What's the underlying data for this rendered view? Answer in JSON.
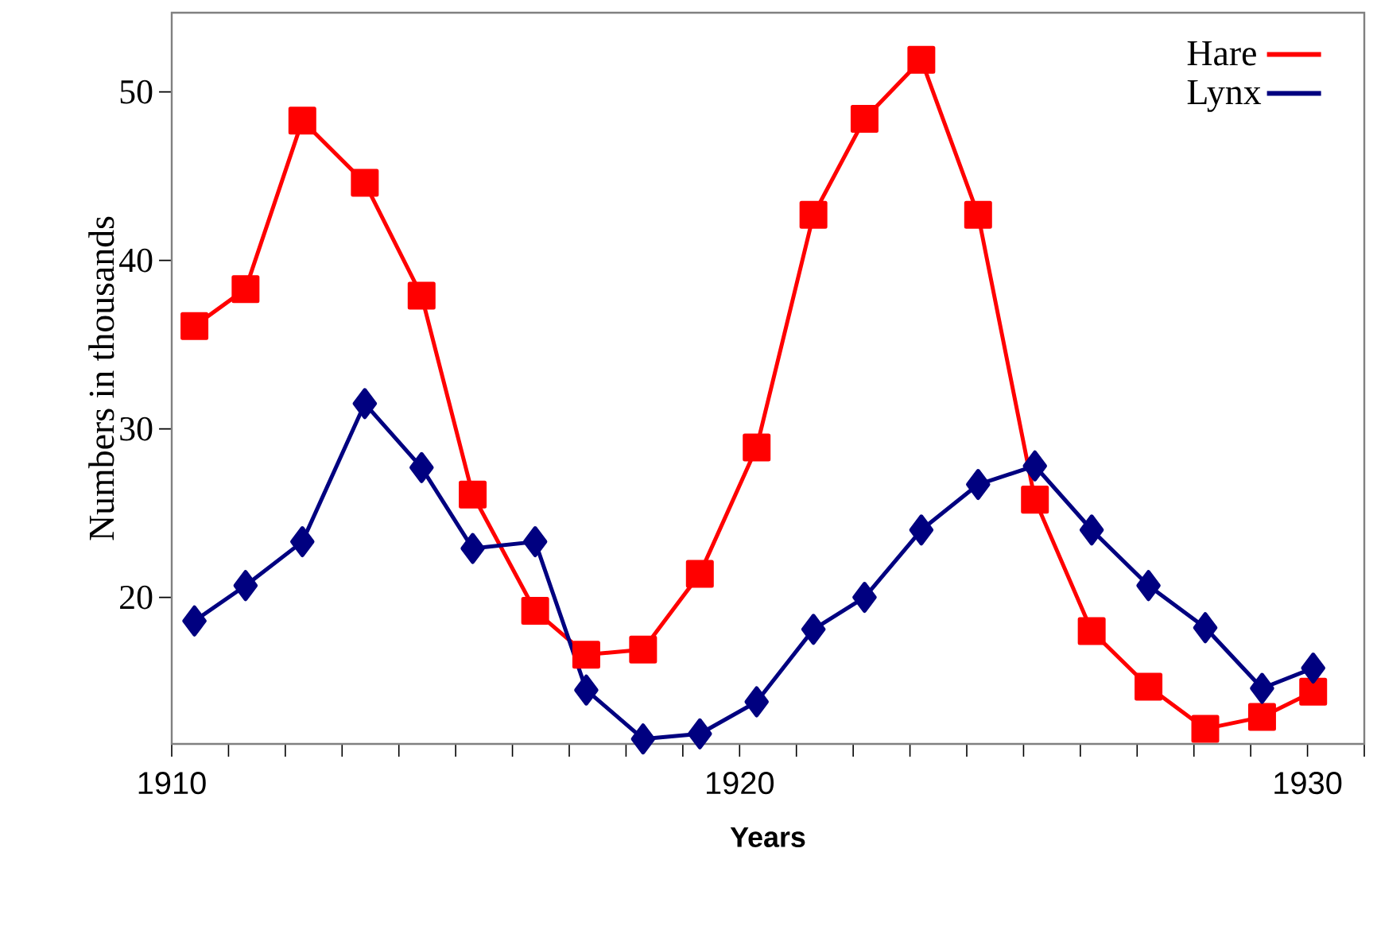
{
  "chart_data": {
    "type": "line",
    "xlabel": "Years",
    "ylabel": "Numbers in thousands",
    "xlim": [
      1910,
      1931
    ],
    "ylim": [
      11.3,
      54.7
    ],
    "xticks": [
      1910,
      {
        "value": 1911,
        "label": null
      },
      {
        "value": 1912,
        "label": null
      },
      {
        "value": 1913,
        "label": null
      },
      {
        "value": 1914,
        "label": null
      },
      {
        "value": 1915,
        "label": null
      },
      {
        "value": 1916,
        "label": null
      },
      {
        "value": 1917,
        "label": null
      },
      {
        "value": 1918,
        "label": null
      },
      {
        "value": 1919,
        "label": null
      },
      1920,
      {
        "value": 1921,
        "label": null
      },
      {
        "value": 1922,
        "label": null
      },
      {
        "value": 1923,
        "label": null
      },
      {
        "value": 1924,
        "label": null
      },
      {
        "value": 1925,
        "label": null
      },
      {
        "value": 1926,
        "label": null
      },
      {
        "value": 1927,
        "label": null
      },
      {
        "value": 1928,
        "label": null
      },
      {
        "value": 1929,
        "label": null
      },
      1930,
      {
        "value": 1931,
        "label": null
      }
    ],
    "yticks": [
      20,
      30,
      40,
      50
    ],
    "x": [
      1910.4,
      1911.3,
      1912.3,
      1913.4,
      1914.4,
      1915.3,
      1916.4,
      1917.3,
      1918.3,
      1919.3,
      1920.3,
      1921.3,
      1922.2,
      1923.2,
      1924.2,
      1925.2,
      1926.2,
      1927.2,
      1928.2,
      1929.2,
      1930.1
    ],
    "series": [
      {
        "name": "Hare",
        "color": "#ff0000",
        "marker": "square",
        "values": [
          36.1,
          38.3,
          48.3,
          44.6,
          37.9,
          26.1,
          19.2,
          16.6,
          16.9,
          21.4,
          28.9,
          42.7,
          48.4,
          51.9,
          42.7,
          25.8,
          18.0,
          14.7,
          12.2,
          12.9,
          14.4
        ]
      },
      {
        "name": "Lynx",
        "color": "#000080",
        "marker": "diamond",
        "values": [
          18.6,
          20.7,
          23.3,
          31.5,
          27.7,
          22.9,
          23.3,
          14.5,
          11.6,
          11.9,
          13.8,
          18.1,
          20.0,
          24.0,
          26.7,
          27.8,
          24.0,
          20.7,
          18.2,
          14.6,
          15.8
        ]
      }
    ],
    "legend": "top right",
    "grid": false,
    "line_style": "solid"
  }
}
